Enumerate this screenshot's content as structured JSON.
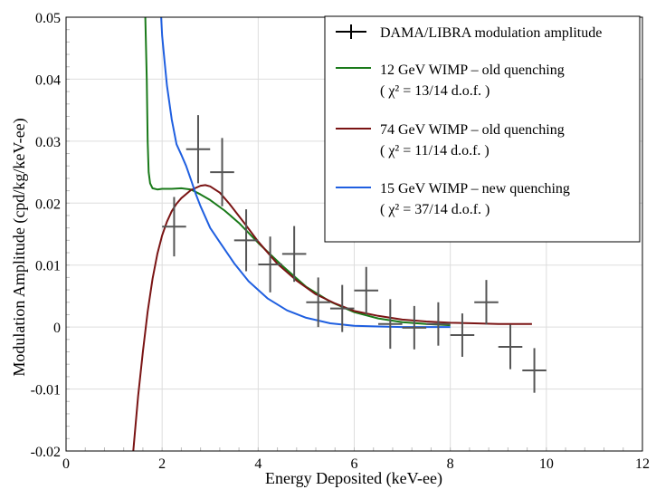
{
  "chart_data": {
    "type": "line",
    "title": "",
    "xlabel": "Energy Deposited (keV-ee)",
    "ylabel": "Modulation Amplitude (cpd/kg/keV-ee)",
    "xlim": [
      0,
      12
    ],
    "ylim": [
      -0.02,
      0.05
    ],
    "xticks": [
      0,
      2,
      4,
      6,
      8,
      10,
      12
    ],
    "xtick_labels": [
      "0",
      "2",
      "4",
      "6",
      "8",
      "10",
      "12"
    ],
    "yticks": [
      -0.02,
      -0.01,
      0,
      0.01,
      0.02,
      0.03,
      0.04,
      0.05
    ],
    "ytick_labels": [
      "-0.02",
      "-0.01",
      "0",
      "0.01",
      "0.02",
      "0.03",
      "0.04",
      "0.05"
    ],
    "grid": true,
    "legend_position": "top-right",
    "data_series": {
      "name": "DAMA/LIBRA modulation amplitude",
      "color": "#555555",
      "x": [
        2.25,
        2.75,
        3.25,
        3.75,
        4.25,
        4.75,
        5.25,
        5.75,
        6.25,
        6.75,
        7.25,
        7.75,
        8.25,
        8.75,
        9.25,
        9.75
      ],
      "y": [
        0.0162,
        0.0287,
        0.025,
        0.014,
        0.0101,
        0.0118,
        0.004,
        0.003,
        0.0059,
        0.0005,
        -0.0001,
        0.0005,
        -0.0013,
        0.004,
        -0.0032,
        -0.007
      ],
      "yerr": [
        0.0048,
        0.0055,
        0.0055,
        0.005,
        0.0045,
        0.0045,
        0.004,
        0.0038,
        0.0038,
        0.004,
        0.0035,
        0.0035,
        0.0035,
        0.0036,
        0.0036,
        0.0036
      ],
      "xerr": 0.25
    },
    "series": [
      {
        "name": "12 GeV WIMP – old quenching",
        "chi": "( χ² = 13/14 d.o.f. )",
        "color": "#1a7a1a",
        "x": [
          1.65,
          1.68,
          1.7,
          1.72,
          1.75,
          1.8,
          1.9,
          2.0,
          2.2,
          2.4,
          2.6,
          2.8,
          3.0,
          3.3,
          3.6,
          4.0,
          4.5,
          5.0,
          5.5,
          6.0,
          6.5,
          7.0,
          7.5,
          8.0
        ],
        "y": [
          0.05,
          0.04,
          0.03,
          0.025,
          0.0232,
          0.0224,
          0.0222,
          0.0223,
          0.0223,
          0.0224,
          0.0222,
          0.0214,
          0.0205,
          0.0188,
          0.0168,
          0.0136,
          0.0099,
          0.0065,
          0.0041,
          0.0024,
          0.0014,
          0.0008,
          0.0005,
          0.0003
        ]
      },
      {
        "name": "74 GeV WIMP – old quenching",
        "chi": "( χ² = 11/14 d.o.f. )",
        "color": "#7a1414",
        "x": [
          1.4,
          1.5,
          1.6,
          1.7,
          1.8,
          1.9,
          2.0,
          2.1,
          2.2,
          2.3,
          2.4,
          2.6,
          2.8,
          2.9,
          3.0,
          3.2,
          3.4,
          3.7,
          4.0,
          4.4,
          4.8,
          5.2,
          5.6,
          6.0,
          6.5,
          7.0,
          7.5,
          8.0,
          8.5,
          9.0,
          9.7
        ],
        "y": [
          -0.02,
          -0.0112,
          -0.004,
          0.0025,
          0.0078,
          0.0118,
          0.0148,
          0.017,
          0.0187,
          0.0199,
          0.0208,
          0.0221,
          0.0228,
          0.0229,
          0.0227,
          0.0217,
          0.0199,
          0.0169,
          0.0138,
          0.0102,
          0.0075,
          0.0053,
          0.0038,
          0.0026,
          0.0018,
          0.0012,
          0.0009,
          0.0007,
          0.0006,
          0.0005,
          0.0005
        ]
      },
      {
        "name": "15 GeV WIMP – new quenching",
        "chi": "( χ² = 37/14 d.o.f. )",
        "color": "#1f5fe0",
        "x": [
          1.98,
          2.0,
          2.05,
          2.1,
          2.2,
          2.3,
          2.4,
          2.5,
          2.6,
          2.7,
          2.8,
          3.0,
          3.2,
          3.5,
          3.8,
          4.2,
          4.6,
          5.0,
          5.5,
          6.0,
          6.5,
          7.0,
          7.5,
          8.0
        ],
        "y": [
          0.05,
          0.047,
          0.043,
          0.039,
          0.0335,
          0.0295,
          0.0278,
          0.026,
          0.0238,
          0.0215,
          0.0195,
          0.016,
          0.0137,
          0.0103,
          0.0074,
          0.0046,
          0.0027,
          0.0015,
          0.0006,
          0.0002,
          0.0001,
          0.0,
          0.0,
          0.0
        ]
      }
    ]
  }
}
